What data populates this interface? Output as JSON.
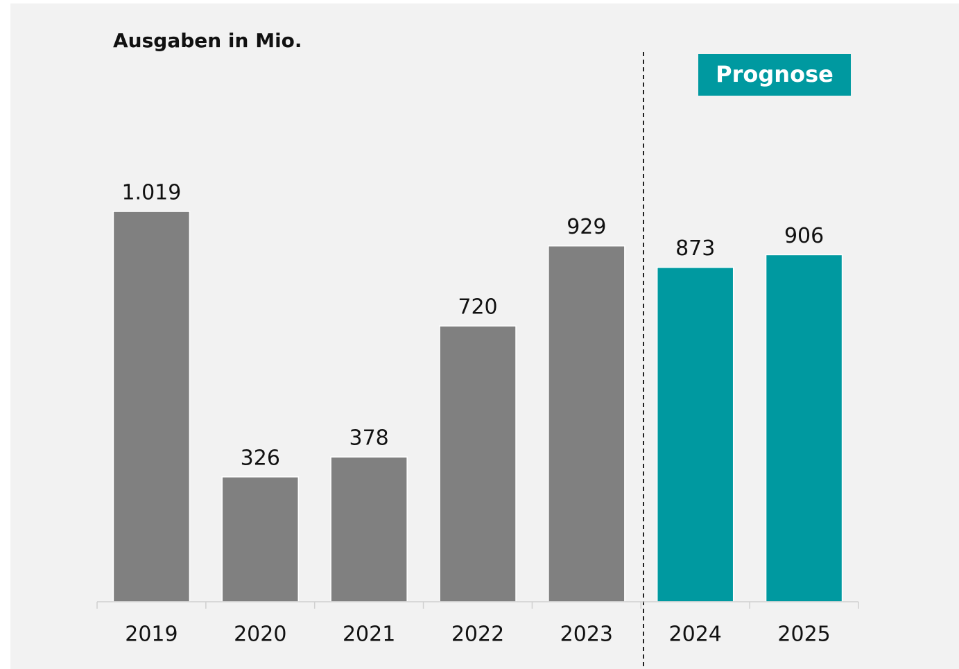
{
  "chart_data": {
    "type": "bar",
    "title": "Ausgaben in Mio.",
    "annotation": "Prognose",
    "annotation_color": "#0099a0",
    "categories": [
      "2019",
      "2020",
      "2021",
      "2022",
      "2023",
      "2024",
      "2025"
    ],
    "values": [
      1019,
      326,
      378,
      720,
      929,
      873,
      906
    ],
    "value_labels": [
      "1.019",
      "326",
      "378",
      "720",
      "929",
      "873",
      "906"
    ],
    "colors": [
      "#808080",
      "#808080",
      "#808080",
      "#808080",
      "#808080",
      "#0099a0",
      "#0099a0"
    ]
  }
}
